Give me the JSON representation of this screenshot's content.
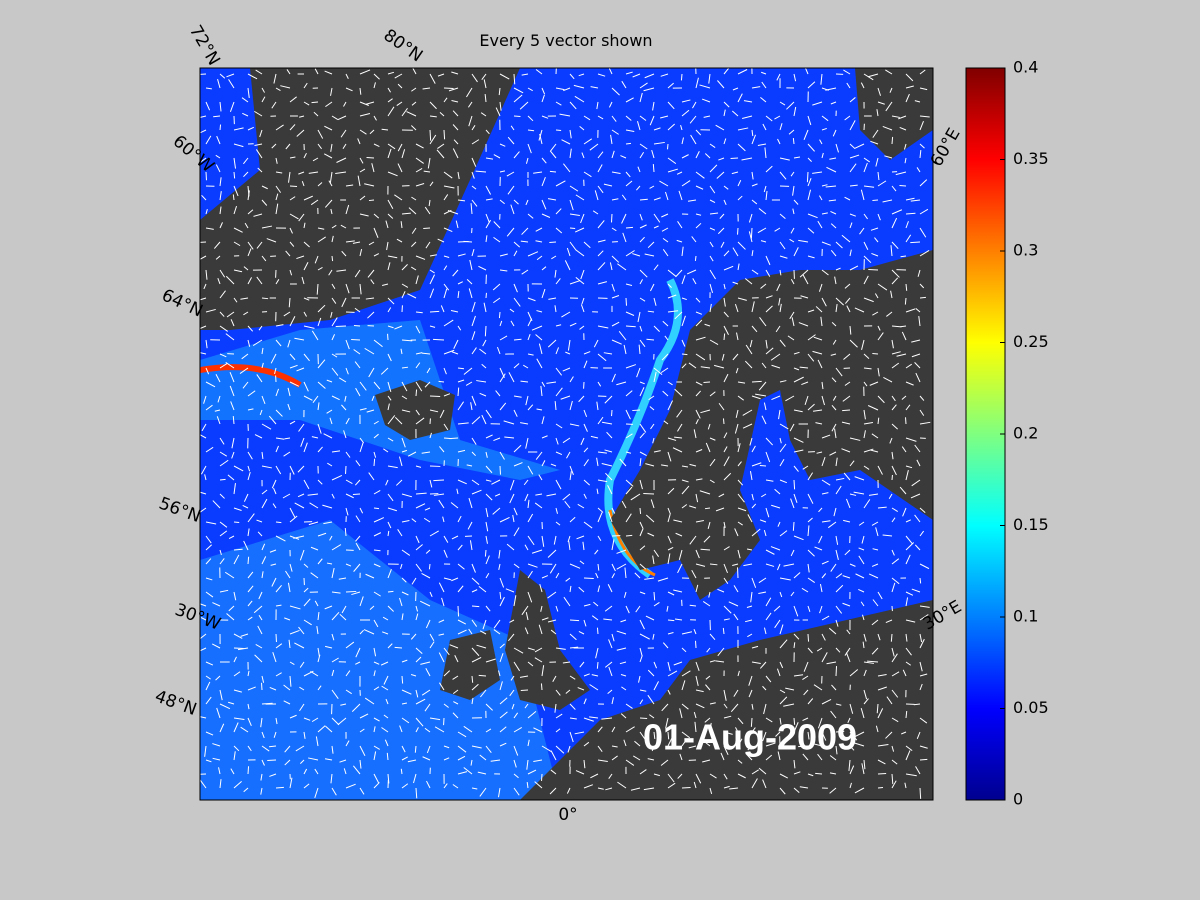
{
  "title": "Every 5 vector shown",
  "date": "01-Aug-2009",
  "grid_labels": {
    "top_left": "72°N",
    "top": "80°N",
    "left_1": "60°W",
    "left_2": "64°N",
    "left_3": "56°N",
    "left_4": "30°W",
    "left_5": "48°N",
    "bottom": "0°",
    "right_1": "60°E",
    "right_2": "30°E"
  },
  "colorbar": {
    "lim": [
      0,
      0.4
    ],
    "ticks": [
      0,
      0.05,
      0.1,
      0.15,
      0.2,
      0.25,
      0.3,
      0.35,
      0.4
    ]
  }
}
